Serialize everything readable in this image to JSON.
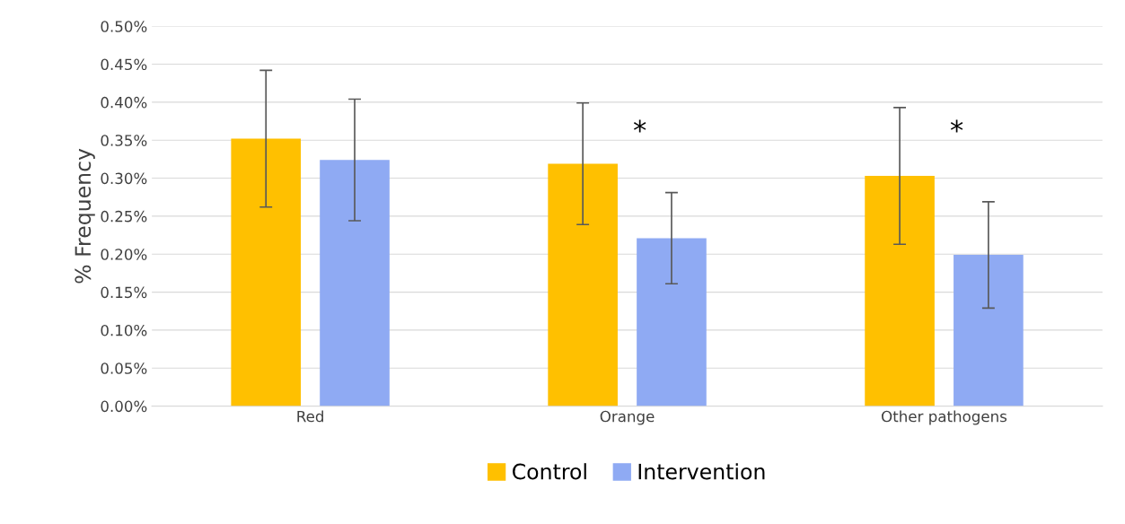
{
  "chart_data": {
    "type": "bar",
    "ylabel": "% Frequency",
    "categories": [
      "Red",
      "Orange",
      "Other pathogens"
    ],
    "series": [
      {
        "name": "Control",
        "color": "#ffc000",
        "values": [
          0.352,
          0.319,
          0.303
        ],
        "errors": [
          0.09,
          0.08,
          0.09
        ]
      },
      {
        "name": "Intervention",
        "color": "#8faaf3",
        "values": [
          0.324,
          0.221,
          0.199
        ],
        "errors": [
          0.08,
          0.06,
          0.07
        ]
      }
    ],
    "ylim": [
      0,
      0.5
    ],
    "yticks": [
      {
        "value": 0,
        "label": "0.00%"
      },
      {
        "value": 0.05,
        "label": "0.05%"
      },
      {
        "value": 0.1,
        "label": "0.10%"
      },
      {
        "value": 0.15,
        "label": "0.15%"
      },
      {
        "value": 0.2,
        "label": "0.20%"
      },
      {
        "value": 0.25,
        "label": "0.25%"
      },
      {
        "value": 0.3,
        "label": "0.30%"
      },
      {
        "value": 0.35,
        "label": "0.35%"
      },
      {
        "value": 0.4,
        "label": "0.40%"
      },
      {
        "value": 0.45,
        "label": "0.45%"
      },
      {
        "value": 0.5,
        "label": "0.50%"
      }
    ],
    "annotations": [
      "*",
      "*"
    ],
    "grid": "y",
    "legend": "bottom"
  }
}
